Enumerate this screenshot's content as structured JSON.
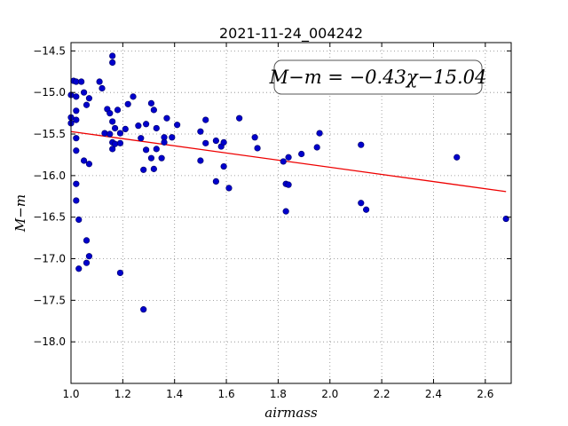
{
  "chart_data": {
    "type": "scatter",
    "title": "2021-11-24_004242",
    "xlabel": "airmass",
    "ylabel": "M−m",
    "xlim": [
      1.0,
      2.7
    ],
    "ylim": [
      -18.5,
      -14.4
    ],
    "y_inverted": true,
    "grid": true,
    "xticks": [
      1.0,
      1.2,
      1.4,
      1.6,
      1.8,
      2.0,
      2.2,
      2.4,
      2.6
    ],
    "yticks": [
      -14.5,
      -15.0,
      -15.5,
      -16.0,
      -16.5,
      -17.0,
      -17.5,
      -18.0
    ],
    "xtick_labels": [
      "1.0",
      "1.2",
      "1.4",
      "1.6",
      "1.8",
      "2.0",
      "2.2",
      "2.4",
      "2.6"
    ],
    "ytick_labels": [
      "−14.5",
      "−15.0",
      "−15.5",
      "−16.0",
      "−16.5",
      "−17.0",
      "−17.5",
      "−18.0"
    ],
    "annotation": "M−m = −0.43χ−15.04",
    "points": [
      [
        1.0,
        -15.03
      ],
      [
        1.0,
        -15.3
      ],
      [
        1.0,
        -15.37
      ],
      [
        1.01,
        -14.86
      ],
      [
        1.02,
        -14.87
      ],
      [
        1.02,
        -15.05
      ],
      [
        1.02,
        -15.22
      ],
      [
        1.02,
        -15.33
      ],
      [
        1.02,
        -15.55
      ],
      [
        1.02,
        -15.7
      ],
      [
        1.02,
        -16.1
      ],
      [
        1.02,
        -16.3
      ],
      [
        1.03,
        -16.53
      ],
      [
        1.03,
        -17.12
      ],
      [
        1.04,
        -14.87
      ],
      [
        1.05,
        -15.0
      ],
      [
        1.05,
        -15.82
      ],
      [
        1.06,
        -15.15
      ],
      [
        1.06,
        -16.78
      ],
      [
        1.06,
        -17.05
      ],
      [
        1.07,
        -15.07
      ],
      [
        1.07,
        -15.86
      ],
      [
        1.07,
        -16.97
      ],
      [
        1.11,
        -14.87
      ],
      [
        1.12,
        -14.95
      ],
      [
        1.13,
        -15.49
      ],
      [
        1.14,
        -15.2
      ],
      [
        1.15,
        -15.25
      ],
      [
        1.15,
        -15.5
      ],
      [
        1.16,
        -14.56
      ],
      [
        1.16,
        -14.64
      ],
      [
        1.16,
        -15.35
      ],
      [
        1.16,
        -15.6
      ],
      [
        1.16,
        -15.68
      ],
      [
        1.17,
        -15.43
      ],
      [
        1.17,
        -15.62
      ],
      [
        1.18,
        -15.21
      ],
      [
        1.19,
        -15.49
      ],
      [
        1.19,
        -15.61
      ],
      [
        1.19,
        -17.17
      ],
      [
        1.21,
        -15.44
      ],
      [
        1.22,
        -15.14
      ],
      [
        1.24,
        -15.05
      ],
      [
        1.26,
        -15.4
      ],
      [
        1.27,
        -15.55
      ],
      [
        1.28,
        -17.61
      ],
      [
        1.28,
        -15.93
      ],
      [
        1.29,
        -15.38
      ],
      [
        1.29,
        -15.69
      ],
      [
        1.31,
        -15.13
      ],
      [
        1.31,
        -15.79
      ],
      [
        1.32,
        -15.21
      ],
      [
        1.32,
        -15.92
      ],
      [
        1.33,
        -15.43
      ],
      [
        1.33,
        -15.68
      ],
      [
        1.35,
        -15.79
      ],
      [
        1.36,
        -15.54
      ],
      [
        1.36,
        -15.6
      ],
      [
        1.37,
        -15.31
      ],
      [
        1.39,
        -15.54
      ],
      [
        1.41,
        -15.39
      ],
      [
        1.5,
        -15.47
      ],
      [
        1.5,
        -15.82
      ],
      [
        1.52,
        -15.33
      ],
      [
        1.52,
        -15.61
      ],
      [
        1.56,
        -15.58
      ],
      [
        1.56,
        -16.07
      ],
      [
        1.58,
        -15.65
      ],
      [
        1.59,
        -15.6
      ],
      [
        1.59,
        -15.89
      ],
      [
        1.61,
        -16.15
      ],
      [
        1.65,
        -15.31
      ],
      [
        1.71,
        -15.54
      ],
      [
        1.72,
        -15.67
      ],
      [
        1.82,
        -15.83
      ],
      [
        1.83,
        -16.1
      ],
      [
        1.83,
        -16.43
      ],
      [
        1.84,
        -15.78
      ],
      [
        1.84,
        -16.11
      ],
      [
        1.89,
        -15.74
      ],
      [
        1.95,
        -15.66
      ],
      [
        1.96,
        -15.49
      ],
      [
        2.12,
        -15.63
      ],
      [
        2.12,
        -16.33
      ],
      [
        2.14,
        -16.41
      ],
      [
        2.49,
        -15.78
      ],
      [
        2.68,
        -16.52
      ]
    ],
    "fit": {
      "slope": -0.43,
      "intercept": -15.04,
      "x_range": [
        1.0,
        2.68
      ]
    },
    "colors": {
      "points": "#0000cc",
      "points_edge": "#000066",
      "fit": "#ee0000",
      "grid": "#888888"
    }
  }
}
